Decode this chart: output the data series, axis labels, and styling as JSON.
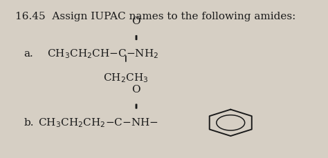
{
  "title": "16.45  Assign IUPAC names to the following amides:",
  "bg_color": "#d6cfc4",
  "text_color": "#1a1a1a",
  "title_fontsize": 11,
  "label_fontsize": 10.5,
  "formula_fontsize": 11,
  "part_a_label": "a.",
  "part_b_label": "b.",
  "part_a_main": "CH$_3$CH$_2$CH–C–NH$_2$",
  "part_a_O": "O",
  "part_a_branch": "CH$_2$CH$_3$",
  "part_b_main": "CH$_3$CH$_2$CH$_2$–C–NH–",
  "part_b_O": "O"
}
